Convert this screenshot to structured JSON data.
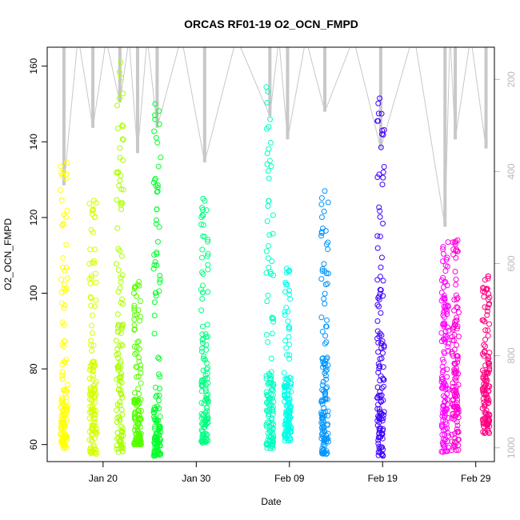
{
  "chart_data": {
    "type": "scatter",
    "title": "ORCAS RF01-19 O2_OCN_FMPD",
    "xlabel": "Date",
    "ylabel": "O2_OCN_FMPD",
    "xlim": [
      "2016-01-14",
      "2016-03-02"
    ],
    "ylim": [
      55.5,
      165
    ],
    "y_ticks": [
      60,
      80,
      100,
      120,
      140,
      160
    ],
    "x_ticks": [
      {
        "date": "2016-01-20",
        "label": "Jan 20"
      },
      {
        "date": "2016-01-30",
        "label": "Jan 30"
      },
      {
        "date": "2016-02-09",
        "label": "Feb 09"
      },
      {
        "date": "2016-02-19",
        "label": "Feb 19"
      },
      {
        "date": "2016-02-29",
        "label": "Feb 29"
      }
    ],
    "y2": {
      "reversed": true,
      "lim": [
        1030,
        130
      ],
      "ticks": [
        200,
        400,
        600,
        800,
        1000
      ],
      "color": "#b8b8b8"
    },
    "profile_line_color": "#c8c8c8",
    "marker": "open-circle",
    "series": [
      {
        "date": "2016-01-15.8",
        "color": "#ffff00",
        "y_min": 59,
        "y_max": 134.5,
        "y2_top": 430,
        "dense_max": 75
      },
      {
        "date": "2016-01-18.9",
        "color": "#d5ff00",
        "y_min": 57.5,
        "y_max": 124.5,
        "y2_top": 305,
        "dense_max": 82
      },
      {
        "date": "2016-01-21.8",
        "color": "#aaff00",
        "y_min": 58,
        "y_max": 161,
        "y2_top": 250,
        "dense_max": 92
      },
      {
        "date": "2016-01-23.7",
        "color": "#55ff00",
        "y_min": 60,
        "y_max": 103,
        "y2_top": 360,
        "dense_max": 72
      },
      {
        "date": "2016-01-25.8",
        "color": "#00ff2b",
        "y_min": 57,
        "y_max": 150,
        "y2_top": 305,
        "dense_max": 70
      },
      {
        "date": "2016-01-30.9",
        "color": "#00ff80",
        "y_min": 60.5,
        "y_max": 125,
        "y2_top": 380,
        "dense_max": 90
      },
      {
        "date": "2016-02-06.9",
        "color": "#00ffc0",
        "y_min": 59,
        "y_max": 154.5,
        "y2_top": 280,
        "dense_max": 80
      },
      {
        "date": "2016-02-08.8",
        "color": "#00ffe6",
        "y_min": 61,
        "y_max": 106.5,
        "y2_top": 330,
        "dense_max": 78
      },
      {
        "date": "2016-02-12.8",
        "color": "#0095ff",
        "y_min": 57.5,
        "y_max": 127,
        "y2_top": 270,
        "dense_max": 85
      },
      {
        "date": "2016-02-18.8",
        "color": "#4000ff",
        "y_min": 57,
        "y_max": 151.5,
        "y2_top": 350,
        "dense_max": 95
      },
      {
        "date": "2016-02-25.7",
        "color": "#ff00ff",
        "y_min": 58,
        "y_max": 113.5,
        "y2_top": 520,
        "dense_max": 100
      },
      {
        "date": "2016-02-26.8",
        "color": "#ff00d5",
        "y_min": 58.5,
        "y_max": 114,
        "y2_top": 330,
        "dense_max": 95
      },
      {
        "date": "2016-03-01.1",
        "color": "#ff0080",
        "y_min": 63,
        "y_max": 104.5,
        "y2_top": 350,
        "dense_max": 85
      }
    ]
  }
}
